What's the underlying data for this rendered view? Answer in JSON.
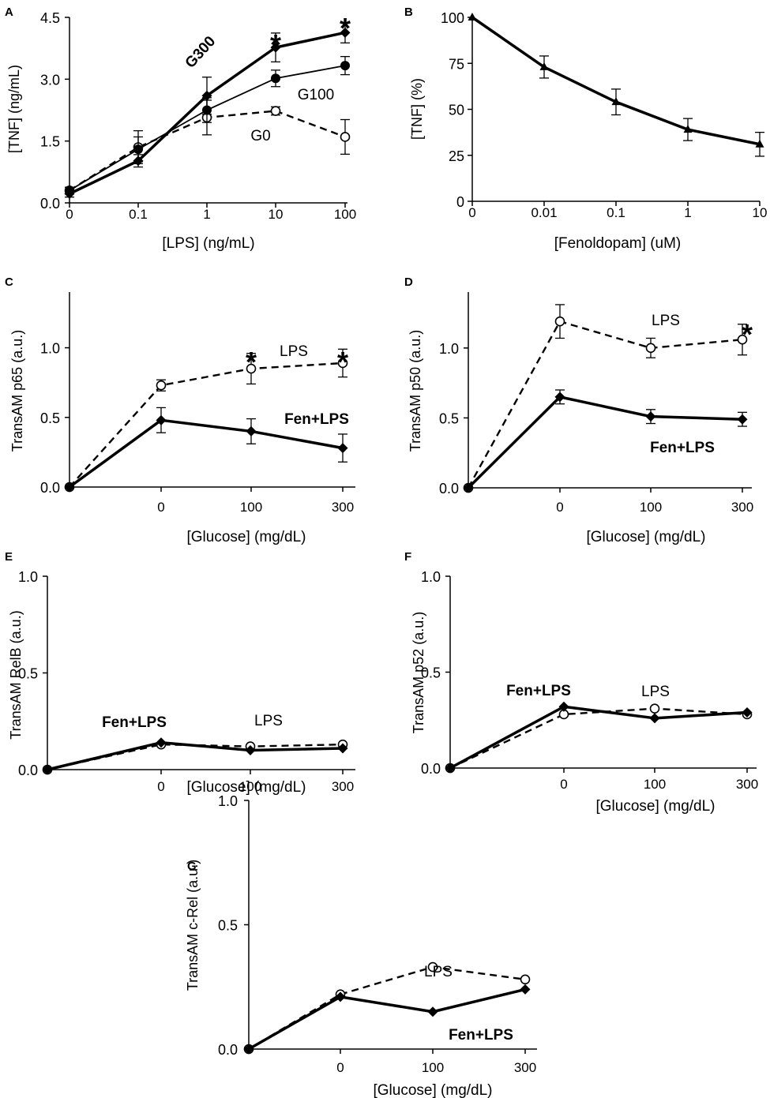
{
  "figure": {
    "background": "#ffffff",
    "ink": "#000000"
  },
  "chart_data": [
    {
      "id": "A",
      "panel_letter": "A",
      "type": "line",
      "categories": [
        "0",
        "0.1",
        "1",
        "10",
        "100"
      ],
      "ylabel": "[TNF] (ng/mL)",
      "xlabel": "[LPS] (ng/mL)",
      "ylim": [
        0,
        4.5
      ],
      "yticks": [
        "0.0",
        "1.5",
        "3.0",
        "4.5"
      ],
      "series": [
        {
          "name": "G0",
          "marker": "open-circle",
          "line": "dashed",
          "bold": false,
          "values": [
            0.3,
            1.35,
            2.07,
            2.23,
            1.6
          ],
          "err": [
            0.08,
            0.4,
            0.42,
            0.1,
            0.42
          ]
        },
        {
          "name": "G100",
          "marker": "filled-circle",
          "line": "thin",
          "bold": false,
          "values": [
            0.3,
            1.3,
            2.25,
            3.02,
            3.33
          ],
          "err": [
            0.08,
            0.3,
            0.3,
            0.2,
            0.22
          ]
        },
        {
          "name": "G300",
          "marker": "diamond",
          "line": "thick",
          "bold": true,
          "values": [
            0.22,
            1.02,
            2.6,
            3.77,
            4.13
          ],
          "err": [
            0.08,
            0.15,
            0.45,
            0.35,
            0.25
          ]
        }
      ],
      "annotations": [
        "*",
        "*"
      ]
    },
    {
      "id": "B",
      "panel_letter": "B",
      "type": "line",
      "categories": [
        "0",
        "0.01",
        "0.1",
        "1",
        "10"
      ],
      "ylabel": "[TNF] (%)",
      "xlabel": "[Fenoldopam] (uM)",
      "ylim": [
        0,
        100
      ],
      "yticks": [
        "0",
        "25",
        "50",
        "75",
        "100"
      ],
      "series": [
        {
          "name": "Fenoldopam",
          "marker": "triangle",
          "line": "thick",
          "bold": false,
          "values": [
            100,
            73,
            54,
            39,
            31
          ],
          "err": [
            0,
            6,
            7,
            6,
            6.5
          ]
        }
      ]
    },
    {
      "id": "C",
      "panel_letter": "C",
      "type": "line",
      "categories": [
        "",
        "0",
        "100",
        "300"
      ],
      "ylabel": "TransAM p65 (a.u.)",
      "xlabel": "[Glucose] (mg/dL)",
      "ylim": [
        0,
        1.4
      ],
      "yticks": [
        "0.0",
        "0.5",
        "1.0"
      ],
      "series": [
        {
          "name": "LPS",
          "marker": "open-circle",
          "line": "dashed",
          "bold": false,
          "values": [
            0,
            0.73,
            0.85,
            0.89
          ],
          "err": [
            0,
            0.04,
            0.11,
            0.1
          ]
        },
        {
          "name": "Fen+LPS",
          "marker": "diamond",
          "line": "thick",
          "bold": true,
          "values": [
            0,
            0.48,
            0.4,
            0.28
          ],
          "err": [
            0,
            0.09,
            0.09,
            0.1
          ]
        }
      ],
      "annotations": [
        "*",
        "*"
      ]
    },
    {
      "id": "D",
      "panel_letter": "D",
      "type": "line",
      "categories": [
        "",
        "0",
        "100",
        "300"
      ],
      "ylabel": "TransAM p50 (a.u.)",
      "xlabel": "[Glucose] (mg/dL)",
      "ylim": [
        0,
        1.4
      ],
      "yticks": [
        "0.0",
        "0.5",
        "1.0"
      ],
      "series": [
        {
          "name": "LPS",
          "marker": "open-circle",
          "line": "dashed",
          "bold": false,
          "values": [
            0,
            1.19,
            1.0,
            1.06
          ],
          "err": [
            0,
            0.12,
            0.07,
            0.11
          ]
        },
        {
          "name": "Fen+LPS",
          "marker": "diamond",
          "line": "thick",
          "bold": true,
          "values": [
            0,
            0.65,
            0.51,
            0.49
          ],
          "err": [
            0,
            0.05,
            0.05,
            0.05
          ]
        }
      ],
      "annotations": [
        "*"
      ]
    },
    {
      "id": "E",
      "panel_letter": "E",
      "type": "line",
      "categories": [
        "",
        "0",
        "100",
        "300"
      ],
      "ylabel": "TransAM RelB (a.u.)",
      "xlabel": "[Glucose] (mg/dL)",
      "ylim": [
        0,
        1.0
      ],
      "yticks": [
        "0.0",
        "0.5",
        "1.0"
      ],
      "series": [
        {
          "name": "LPS",
          "marker": "open-circle",
          "line": "dashed",
          "bold": false,
          "values": [
            0,
            0.13,
            0.12,
            0.13
          ],
          "err": [
            0,
            0,
            0,
            0
          ]
        },
        {
          "name": "Fen+LPS",
          "marker": "diamond",
          "line": "thick",
          "bold": true,
          "values": [
            0,
            0.14,
            0.1,
            0.11
          ],
          "err": [
            0,
            0,
            0,
            0
          ]
        }
      ]
    },
    {
      "id": "F",
      "panel_letter": "F",
      "type": "line",
      "categories": [
        "",
        "0",
        "100",
        "300"
      ],
      "ylabel": "TransAM p52 (a.u.)",
      "xlabel": "[Glucose] (mg/dL)",
      "ylim": [
        0,
        1.0
      ],
      "yticks": [
        "0.0",
        "0.5",
        "1.0"
      ],
      "series": [
        {
          "name": "LPS",
          "marker": "open-circle",
          "line": "dashed",
          "bold": false,
          "values": [
            0,
            0.28,
            0.31,
            0.28
          ],
          "err": [
            0,
            0,
            0,
            0
          ]
        },
        {
          "name": "Fen+LPS",
          "marker": "diamond",
          "line": "thick",
          "bold": true,
          "values": [
            0,
            0.32,
            0.26,
            0.29
          ],
          "err": [
            0,
            0,
            0,
            0
          ]
        }
      ]
    },
    {
      "id": "G",
      "panel_letter": "G",
      "type": "line",
      "categories": [
        "",
        "0",
        "100",
        "300"
      ],
      "ylabel": "TransAM c-Rel (a.u.)",
      "xlabel": "[Glucose] (mg/dL)",
      "ylim": [
        0,
        1.0
      ],
      "yticks": [
        "0.0",
        "0.5",
        "1.0"
      ],
      "series": [
        {
          "name": "LPS",
          "marker": "open-circle",
          "line": "dashed",
          "bold": false,
          "values": [
            0,
            0.22,
            0.33,
            0.28
          ],
          "err": [
            0,
            0,
            0,
            0
          ]
        },
        {
          "name": "Fen+LPS",
          "marker": "diamond",
          "line": "thick",
          "bold": true,
          "values": [
            0,
            0.21,
            0.15,
            0.24
          ],
          "err": [
            0,
            0,
            0,
            0
          ]
        }
      ]
    }
  ]
}
